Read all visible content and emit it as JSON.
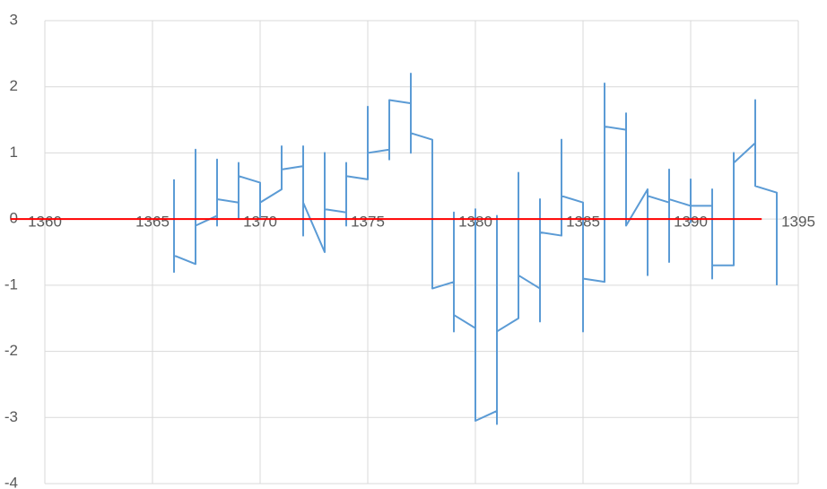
{
  "chart_data": {
    "type": "scatter",
    "xlim": [
      1360,
      1395
    ],
    "xticks": [
      1360,
      1365,
      1370,
      1375,
      1380,
      1385,
      1390,
      1395
    ],
    "ylim": [
      -4,
      3
    ],
    "yticks": [
      -4,
      -3,
      -2,
      -1,
      0,
      1,
      2,
      3
    ],
    "grid": true,
    "series": [
      {
        "color": "#5b9bd5",
        "x": [
          1366,
          1366,
          1366,
          1367,
          1367,
          1367,
          1367,
          1368,
          1368,
          1368,
          1368,
          1369,
          1369,
          1369,
          1369,
          1370,
          1370,
          1370,
          1371,
          1371,
          1371,
          1372,
          1372,
          1372,
          1372,
          1373,
          1373,
          1373,
          1374,
          1374,
          1374,
          1374,
          1375,
          1375,
          1375,
          1376,
          1376,
          1376,
          1377,
          1377,
          1377,
          1377,
          1378,
          1378,
          1378,
          1379,
          1379,
          1379,
          1379,
          1380,
          1380,
          1380,
          1381,
          1381,
          1381,
          1381,
          1382,
          1382,
          1382,
          1383,
          1383,
          1383,
          1383,
          1384,
          1384,
          1384,
          1385,
          1385,
          1385,
          1386,
          1386,
          1386,
          1387,
          1387,
          1387,
          1388,
          1388,
          1388,
          1389,
          1389,
          1389,
          1389,
          1390,
          1390,
          1390,
          1390,
          1391,
          1391,
          1391,
          1391,
          1392,
          1392,
          1392,
          1393,
          1393,
          1393,
          1394,
          1394
        ],
        "values": [
          0.6,
          -0.8,
          -0.55,
          -0.68,
          1.05,
          -0.3,
          -0.1,
          0.05,
          0.9,
          -0.1,
          0.3,
          0.25,
          0.85,
          0,
          0.65,
          0.55,
          0,
          0.25,
          0.45,
          1.1,
          0.75,
          0.8,
          -0.25,
          1.1,
          0.25,
          -0.5,
          1.0,
          0.15,
          0.1,
          -0.1,
          0.85,
          0.65,
          0.6,
          1.7,
          1.0,
          1.05,
          0.9,
          1.8,
          1.75,
          2.2,
          1.0,
          1.3,
          1.2,
          -0.15,
          -1.05,
          -0.95,
          0.1,
          -1.7,
          -1.45,
          -1.65,
          0.15,
          -3.05,
          -2.9,
          0.05,
          -3.1,
          -1.7,
          -1.5,
          0.7,
          -0.85,
          -1.05,
          0.3,
          -1.55,
          -0.2,
          -0.25,
          1.2,
          0.35,
          0.25,
          -1.7,
          -0.9,
          -0.95,
          2.05,
          1.4,
          1.35,
          1.6,
          -0.1,
          0.45,
          -0.85,
          0.35,
          0.25,
          0.75,
          -0.65,
          0.3,
          0.2,
          0.6,
          -0.05,
          0.2,
          0.2,
          -0.9,
          0.45,
          -0.7,
          -0.7,
          1.0,
          0.85,
          1.15,
          1.8,
          0.5,
          0.4,
          -1.0
        ]
      },
      {
        "color": "#ff0000",
        "x": [
          1358.4,
          1393.3
        ],
        "values": [
          0,
          0
        ]
      }
    ]
  }
}
